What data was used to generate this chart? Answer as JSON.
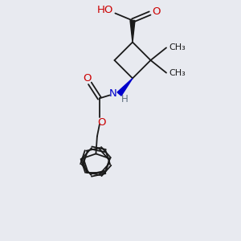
{
  "background_color": "#e8eaf0",
  "bond_color": "#1a1a1a",
  "red_color": "#cc0000",
  "blue_color": "#0000cc",
  "gray_color": "#607080",
  "figsize": [
    3.0,
    3.0
  ],
  "dpi": 100,
  "xlim": [
    -5,
    5
  ],
  "ylim": [
    -5,
    5
  ]
}
